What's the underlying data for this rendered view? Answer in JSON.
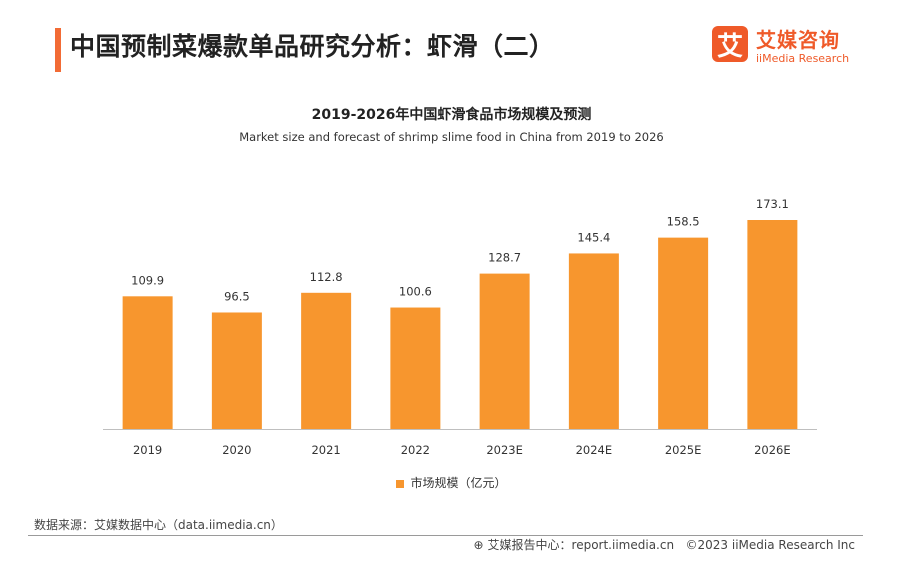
{
  "header": {
    "title": "中国预制菜爆款单品研究分析：虾滑（二）"
  },
  "logo": {
    "cn": "艾媒咨询",
    "en": "iiMedia Research",
    "mark": "艾"
  },
  "legend": {
    "label": "市场规模（亿元）"
  },
  "colors": {
    "accent": "#f26b35",
    "bar": "#f7962e"
  },
  "source": "数据来源：艾媒数据中心（data.iimedia.cn）",
  "footer": {
    "report_site": "艾媒报告中心：report.iimedia.cn",
    "copyright": "©2023  iiMedia Research  Inc"
  },
  "chart_data": {
    "type": "bar",
    "title": "2019-2026年中国虾滑食品市场规模及预测",
    "subtitle": "Market size and forecast of shrimp slime food in China from 2019 to 2026",
    "categories": [
      "2019",
      "2020",
      "2021",
      "2022",
      "2023E",
      "2024E",
      "2025E",
      "2026E"
    ],
    "series": [
      {
        "name": "市场规模（亿元）",
        "values": [
          109.9,
          96.5,
          112.8,
          100.6,
          128.7,
          145.4,
          158.5,
          173.1
        ]
      }
    ],
    "value_labels": [
      "109.9",
      "96.5",
      "112.8",
      "100.6",
      "128.7",
      "145.4",
      "158.5",
      "173.1"
    ],
    "ylim": [
      0,
      173.1
    ],
    "grid": false,
    "legend_position": "bottom"
  }
}
